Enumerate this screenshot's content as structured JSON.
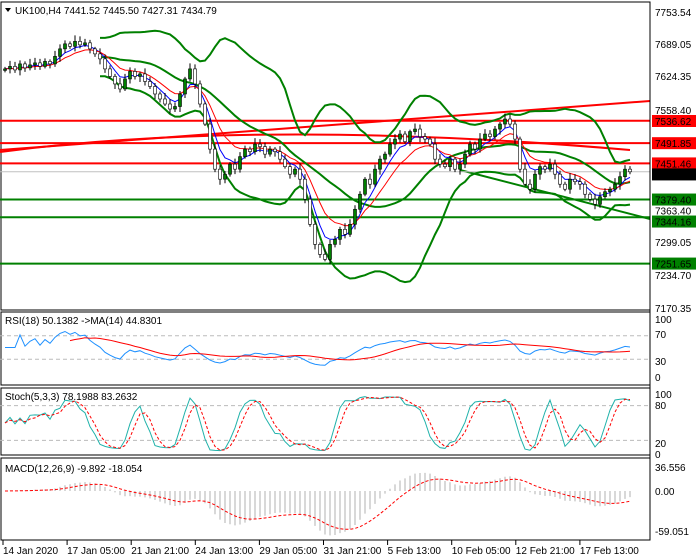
{
  "header": {
    "symbol": "UK100,H4",
    "open": "7441.52",
    "high": "7445.50",
    "low": "7427.31",
    "close": "7434.79",
    "text": "UK100,H4  7441.52 7445.50 7427.31 7434.79"
  },
  "chart_data": [
    {
      "type": "candlestick",
      "title": "UK100,H4",
      "ylim": [
        7170.35,
        7753.54
      ],
      "price_ticks": [
        "7753.54",
        "7689.05",
        "7624.35",
        "7558.40",
        "7299.05",
        "7234.70",
        "7170.35"
      ],
      "current_price": "7434.79",
      "levels": [
        {
          "value": "7536.62",
          "color": "#ff0000"
        },
        {
          "value": "7491.85",
          "color": "#ff0000"
        },
        {
          "value": "7451.46",
          "color": "#ff0000"
        },
        {
          "value": "7379.40",
          "color": "#008000"
        },
        {
          "value": "7363.40",
          "color": "none"
        },
        {
          "value": "7344.16",
          "color": "#008000"
        },
        {
          "value": "7251.65",
          "color": "#008000"
        }
      ],
      "closes": [
        7640,
        7645,
        7638,
        7650,
        7642,
        7648,
        7652,
        7645,
        7655,
        7650,
        7665,
        7680,
        7690,
        7685,
        7695,
        7688,
        7692,
        7680,
        7670,
        7660,
        7640,
        7625,
        7610,
        7600,
        7620,
        7635,
        7625,
        7630,
        7615,
        7605,
        7590,
        7580,
        7570,
        7560,
        7565,
        7590,
        7620,
        7640,
        7610,
        7570,
        7530,
        7480,
        7440,
        7420,
        7430,
        7450,
        7440,
        7465,
        7480,
        7475,
        7490,
        7485,
        7470,
        7480,
        7475,
        7460,
        7445,
        7430,
        7440,
        7420,
        7380,
        7330,
        7290,
        7270,
        7260,
        7290,
        7300,
        7320,
        7310,
        7330,
        7360,
        7390,
        7420,
        7410,
        7440,
        7460,
        7470,
        7490,
        7500,
        7510,
        7495,
        7515,
        7520,
        7505,
        7500,
        7490,
        7460,
        7450,
        7445,
        7460,
        7440,
        7450,
        7470,
        7490,
        7480,
        7500,
        7510,
        7505,
        7520,
        7530,
        7540,
        7530,
        7500,
        7440,
        7410,
        7400,
        7430,
        7445,
        7440,
        7450,
        7430,
        7410,
        7400,
        7420,
        7415,
        7410,
        7390,
        7380,
        7370,
        7385,
        7395,
        7400,
        7410,
        7425,
        7440,
        7434.79
      ],
      "x_ticks": [
        "14 Jan 2020",
        "17 Jan 05:00",
        "21 Jan 21:00",
        "24 Jan 13:00",
        "29 Jan 05:00",
        "31 Jan 21:00",
        "5 Feb 13:00",
        "10 Feb 05:00",
        "12 Feb 21:00",
        "17 Feb 13:00"
      ]
    },
    {
      "type": "line",
      "title": "RSI(18) 50.1382 ->MA(14) 44.8301",
      "ticks": [
        "100",
        "70",
        "30",
        "0"
      ],
      "ylim": [
        0,
        100
      ]
    },
    {
      "type": "line",
      "title": "Stoch(5,3,3) 78.1988 83.2632",
      "ticks": [
        "100",
        "80",
        "20",
        "0"
      ],
      "ylim": [
        0,
        100
      ]
    },
    {
      "type": "bar",
      "title": "MACD(12,26,9) -9.892 -18.054",
      "ticks": [
        "36.556",
        "0.00",
        "-59.051"
      ],
      "ylim": [
        -59.051,
        36.556
      ]
    }
  ],
  "colors": {
    "bull": "#008000",
    "bear": "#ffffff",
    "bands": "#008000",
    "ma_fast": "#0000ff",
    "ma_slow": "#ff0000",
    "rsi": "#1e90ff",
    "stoch": "#20b2aa",
    "signal": "#ff0000",
    "hist": "#b0b0b0"
  }
}
